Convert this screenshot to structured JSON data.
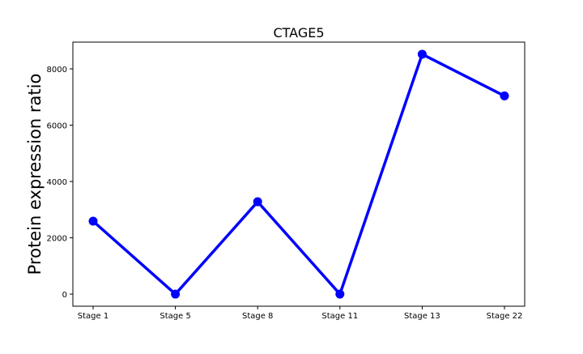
{
  "chart_data": {
    "type": "line",
    "title": "CTAGE5",
    "xlabel": "",
    "ylabel": "Protein expression ratio",
    "categories": [
      "Stage 1",
      "Stage 5",
      "Stage 8",
      "Stage 11",
      "Stage 13",
      "Stage 22"
    ],
    "series": [
      {
        "values": [
          2590,
          0,
          3280,
          0,
          8520,
          7040
        ]
      }
    ],
    "ylim": [
      -430,
      8950
    ],
    "yticks": [
      0,
      2000,
      4000,
      6000,
      8000
    ],
    "ytick_labels": [
      "0",
      "2000",
      "4000",
      "6000",
      "8000"
    ],
    "grid": false,
    "legend": "none",
    "colors": {
      "line": "#0000ff",
      "marker": "#0000ff",
      "axes": "#000000",
      "background": "#ffffff"
    }
  }
}
